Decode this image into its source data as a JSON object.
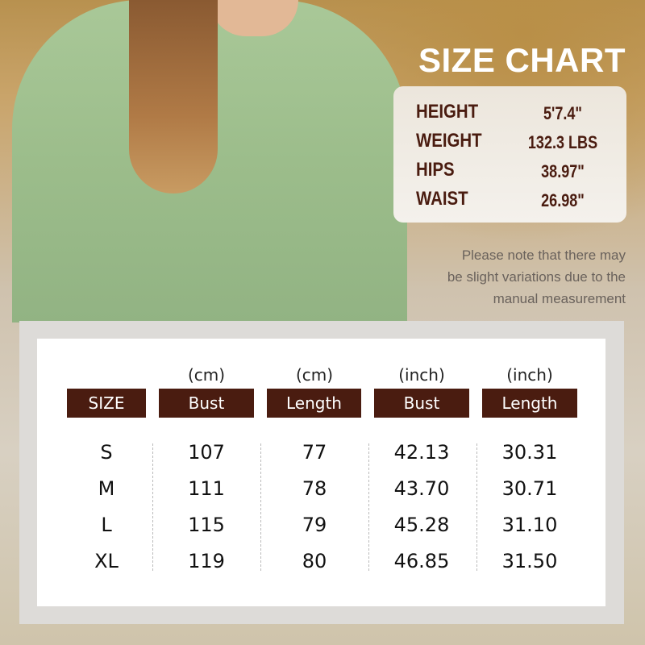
{
  "title": "SIZE CHART",
  "model_stats": [
    {
      "label": "HEIGHT",
      "value": "5'7.4\""
    },
    {
      "label": "WEIGHT",
      "value": "132.3 LBS"
    },
    {
      "label": "HIPS",
      "value": "38.97\""
    },
    {
      "label": "WAIST",
      "value": "26.98\""
    }
  ],
  "note_lines": [
    "Please note that there may",
    "be slight variations due to the",
    "manual measurement"
  ],
  "table": {
    "units": [
      "",
      "(cm)",
      "(cm)",
      "(inch)",
      "(inch)"
    ],
    "headers": [
      "SIZE",
      "Bust",
      "Length",
      "Bust",
      "Length"
    ],
    "rows": [
      [
        "S",
        "107",
        "77",
        "42.13",
        "30.31"
      ],
      [
        "M",
        "111",
        "78",
        "43.70",
        "30.71"
      ],
      [
        "L",
        "115",
        "79",
        "45.28",
        "31.10"
      ],
      [
        "XL",
        "119",
        "80",
        "46.85",
        "31.50"
      ]
    ]
  },
  "colors": {
    "header_bg": "#4a1c10",
    "stat_text": "#4a1c10",
    "sweater": "#a9c898"
  }
}
